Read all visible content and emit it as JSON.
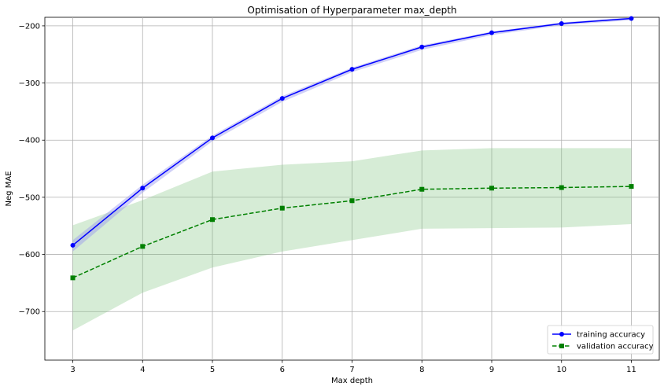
{
  "chart_data": {
    "type": "line",
    "title": "Optimisation of Hyperparameter max_depth",
    "xlabel": "Max depth",
    "ylabel": "Neg MAE",
    "x": [
      3,
      4,
      5,
      6,
      7,
      8,
      9,
      10,
      11
    ],
    "xlim": [
      2.6,
      11.4
    ],
    "ylim": [
      -785,
      -185
    ],
    "xticks": [
      3,
      4,
      5,
      6,
      7,
      8,
      9,
      10,
      11
    ],
    "yticks": [
      -700,
      -600,
      -500,
      -400,
      -300,
      -200
    ],
    "grid": true,
    "legend_position": "bottom-right",
    "series": [
      {
        "name": "training accuracy",
        "color": "#0000ff",
        "band_color": "#9999ee",
        "linestyle": "solid",
        "marker": "circle",
        "values": [
          -584,
          -484,
          -396,
          -327,
          -276,
          -237,
          -212,
          -196,
          -187
        ],
        "upper": [
          -575,
          -478,
          -392,
          -323,
          -273,
          -234,
          -210,
          -194,
          -185
        ],
        "lower": [
          -595,
          -492,
          -402,
          -333,
          -281,
          -242,
          -216,
          -199,
          -190
        ]
      },
      {
        "name": "validation accuracy",
        "color": "#008000",
        "band_color": "#77c077",
        "linestyle": "dashed",
        "marker": "square",
        "values": [
          -641,
          -586,
          -539,
          -519,
          -506,
          -486,
          -484,
          -483,
          -481
        ],
        "upper": [
          -549,
          -505,
          -455,
          -443,
          -437,
          -418,
          -414,
          -414,
          -414
        ],
        "lower": [
          -733,
          -667,
          -623,
          -595,
          -575,
          -555,
          -554,
          -553,
          -547
        ]
      }
    ]
  }
}
